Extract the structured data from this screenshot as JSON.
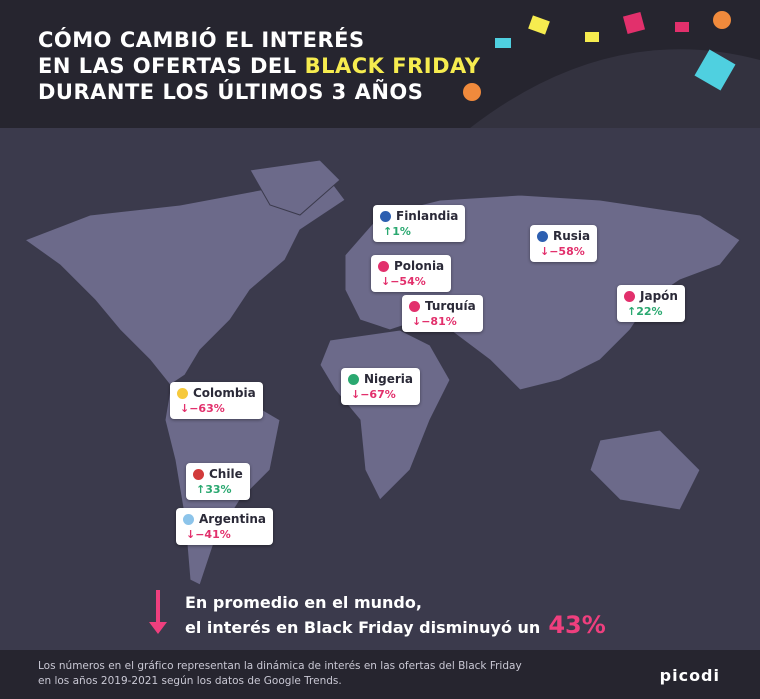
{
  "header": {
    "title": {
      "line1": "CÓMO CAMBIÓ EL INTERÉS",
      "line2": "EN LAS OFERTAS DEL",
      "highlight": "BLACK FRIDAY",
      "line3": "DURANTE LOS ÚLTIMOS 3 AÑOS"
    }
  },
  "countries": [
    {
      "name": "Finlandia",
      "change": "↑1%",
      "color": "#2aa870"
    },
    {
      "name": "Polonia",
      "change": "↓−54%",
      "color": "#e2306c"
    },
    {
      "name": "Turquía",
      "change": "↓−81%",
      "color": "#e2306c"
    },
    {
      "name": "Rusia",
      "change": "↓−58%",
      "color": "#e2306c"
    },
    {
      "name": "Japón",
      "change": "↑22%",
      "color": "#2aa870"
    },
    {
      "name": "Nigeria",
      "change": "↓−67%",
      "color": "#e2306c"
    },
    {
      "name": "Colombia",
      "change": "↓−63%",
      "color": "#e2306c"
    },
    {
      "name": "Chile",
      "change": "↑33%",
      "color": "#2aa870"
    },
    {
      "name": "Argentina",
      "change": "↓−41%",
      "color": "#e2306c"
    }
  ],
  "summary": {
    "line1": "En promedio en el mundo,",
    "line2": "el interés en Black Friday disminuyó un",
    "value": "43%"
  },
  "footer": {
    "line1": "Los números en el gráfico representan la dinámica de interés en las ofertas del Black Friday",
    "line2": "en los años 2019-2021 según los datos de Google Trends.",
    "logo": "picodi"
  }
}
